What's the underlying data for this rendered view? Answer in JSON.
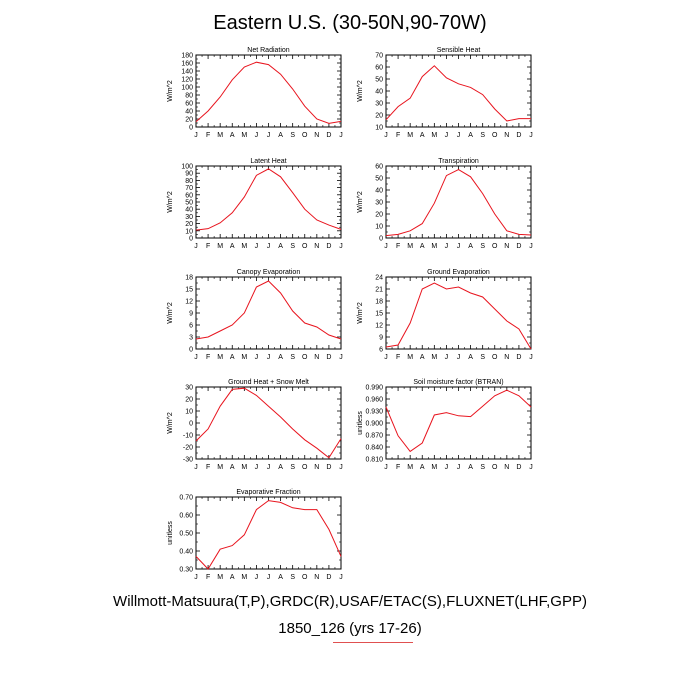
{
  "main_title": "Eastern U.S. (30-50N,90-70W)",
  "footer": {
    "line1": "Willmott-Matsuura(T,P),GRDC(R),USAF/ETAC(S),FLUXNET(LHF,GPP)",
    "line2": "1850_126 (yrs 17-26)"
  },
  "colors": {
    "line": "#e8141e",
    "axis": "#000000"
  },
  "chart_data": [
    {
      "type": "line",
      "title": "Net Radiation",
      "ylabel": "W/m^2",
      "categories": [
        "J",
        "F",
        "M",
        "A",
        "M",
        "J",
        "J",
        "A",
        "S",
        "O",
        "N",
        "D",
        "J"
      ],
      "yticks": [
        "0",
        "20",
        "40",
        "60",
        "80",
        "100",
        "120",
        "140",
        "160",
        "180"
      ],
      "ylim": [
        0,
        180
      ],
      "values": [
        13,
        40,
        75,
        118,
        150,
        162,
        156,
        132,
        95,
        52,
        20,
        9,
        14
      ]
    },
    {
      "type": "line",
      "title": "Sensible Heat",
      "ylabel": "W/m^2",
      "categories": [
        "J",
        "F",
        "M",
        "A",
        "M",
        "J",
        "J",
        "A",
        "S",
        "O",
        "N",
        "D",
        "J"
      ],
      "yticks": [
        "10",
        "20",
        "30",
        "40",
        "50",
        "60",
        "70"
      ],
      "ylim": [
        10,
        70
      ],
      "values": [
        16,
        27,
        34,
        52,
        61,
        51,
        46,
        43,
        37,
        25,
        15,
        17,
        17
      ]
    },
    {
      "type": "line",
      "title": "Latent Heat",
      "ylabel": "W/m^2",
      "categories": [
        "J",
        "F",
        "M",
        "A",
        "M",
        "J",
        "J",
        "A",
        "S",
        "O",
        "N",
        "D",
        "J"
      ],
      "yticks": [
        "0",
        "10",
        "20",
        "30",
        "40",
        "50",
        "60",
        "70",
        "80",
        "90",
        "100"
      ],
      "ylim": [
        0,
        100
      ],
      "values": [
        11,
        13,
        21,
        35,
        57,
        87,
        96,
        85,
        63,
        40,
        25,
        18,
        12
      ]
    },
    {
      "type": "line",
      "title": "Transpiration",
      "ylabel": "W/m^2",
      "categories": [
        "J",
        "F",
        "M",
        "A",
        "M",
        "J",
        "J",
        "A",
        "S",
        "O",
        "N",
        "D",
        "J"
      ],
      "yticks": [
        "0",
        "10",
        "20",
        "30",
        "40",
        "50",
        "60"
      ],
      "ylim": [
        0,
        60
      ],
      "values": [
        2,
        3,
        6,
        12,
        29,
        52,
        57,
        51,
        37,
        20,
        6,
        3,
        2.5
      ]
    },
    {
      "type": "line",
      "title": "Canopy Evaporation",
      "ylabel": "W/m^2",
      "categories": [
        "J",
        "F",
        "M",
        "A",
        "M",
        "J",
        "J",
        "A",
        "S",
        "O",
        "N",
        "D",
        "J"
      ],
      "yticks": [
        "0",
        "3",
        "6",
        "9",
        "12",
        "15",
        "18"
      ],
      "ylim": [
        0,
        18
      ],
      "values": [
        2.5,
        3,
        4.5,
        6,
        9,
        15.5,
        17,
        14,
        9.5,
        6.5,
        5.5,
        3.5,
        2.5
      ]
    },
    {
      "type": "line",
      "title": "Ground Evaporation",
      "ylabel": "W/m^2",
      "categories": [
        "J",
        "F",
        "M",
        "A",
        "M",
        "J",
        "J",
        "A",
        "S",
        "O",
        "N",
        "D",
        "J"
      ],
      "yticks": [
        "6",
        "9",
        "12",
        "15",
        "18",
        "21",
        "24"
      ],
      "ylim": [
        6,
        24
      ],
      "values": [
        6.5,
        7,
        12.5,
        21,
        22.5,
        21,
        21.5,
        20,
        19,
        16,
        13,
        11,
        6
      ]
    },
    {
      "type": "line",
      "title": "Ground Heat + Snow Melt",
      "ylabel": "W/m^2",
      "categories": [
        "J",
        "F",
        "M",
        "A",
        "M",
        "J",
        "J",
        "A",
        "S",
        "O",
        "N",
        "D",
        "J"
      ],
      "yticks": [
        "-30",
        "-20",
        "-10",
        "0",
        "10",
        "20",
        "30"
      ],
      "ylim": [
        -30,
        30
      ],
      "values": [
        -15,
        -5,
        14,
        28,
        29,
        23,
        14,
        5,
        -5,
        -14,
        -21,
        -29,
        -13
      ]
    },
    {
      "type": "line",
      "title": "Soil moisture factor (BTRAN)",
      "ylabel": "unitless",
      "categories": [
        "J",
        "F",
        "M",
        "A",
        "M",
        "J",
        "J",
        "A",
        "S",
        "O",
        "N",
        "D",
        "J"
      ],
      "yticks": [
        "0.810",
        "0.840",
        "0.870",
        "0.900",
        "0.930",
        "0.960",
        "0.990"
      ],
      "ylim": [
        0.81,
        0.99
      ],
      "values": [
        0.94,
        0.868,
        0.829,
        0.85,
        0.92,
        0.926,
        0.918,
        0.916,
        0.942,
        0.968,
        0.982,
        0.968,
        0.94
      ]
    },
    {
      "type": "line",
      "title": "Evaporative Fraction",
      "ylabel": "unitless",
      "categories": [
        "J",
        "F",
        "M",
        "A",
        "M",
        "J",
        "J",
        "A",
        "S",
        "O",
        "N",
        "D",
        "J"
      ],
      "yticks": [
        "0.30",
        "0.40",
        "0.50",
        "0.60",
        "0.70"
      ],
      "ylim": [
        0.3,
        0.7
      ],
      "values": [
        0.37,
        0.3,
        0.41,
        0.43,
        0.49,
        0.63,
        0.68,
        0.67,
        0.64,
        0.63,
        0.63,
        0.52,
        0.37
      ]
    }
  ]
}
